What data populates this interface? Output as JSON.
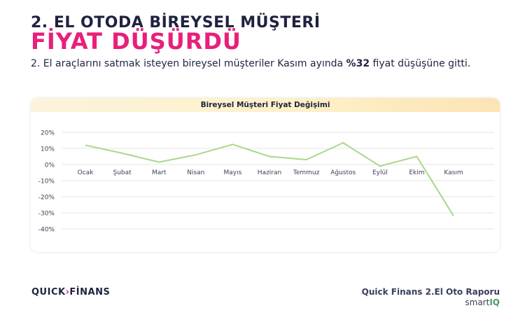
{
  "header": {
    "title_line1": "2. EL OTODA BİREYSEL MÜŞTERİ",
    "title_line2": "FİYAT DÜŞÜRDÜ",
    "subtitle_pre": "2. El araçlarını satmak isteyen bireysel müşteriler Kasım ayında ",
    "subtitle_bold": "%32",
    "subtitle_post": " fiyat düşüşüne gitti."
  },
  "colors": {
    "accent": "#e8207a",
    "title": "#1f2340",
    "line": "#a8d88a"
  },
  "chart_data": {
    "type": "line",
    "title": "Bireysel Müşteri Fiyat Değişimi",
    "categories": [
      "Ocak",
      "Şubat",
      "Mart",
      "Nisan",
      "Mayıs",
      "Haziran",
      "Temmuz",
      "Ağustos",
      "Eylül",
      "Ekim",
      "Kasım"
    ],
    "series": [
      {
        "values": [
          12,
          7,
          1.5,
          6,
          12.5,
          5,
          3,
          13.5,
          -1,
          5,
          -32
        ]
      }
    ],
    "yticks": [
      "20%",
      "10%",
      "0%",
      "-10%",
      "-20%",
      "-30%",
      "-40%"
    ],
    "ylim": [
      -40,
      20
    ],
    "grid": true,
    "xlabel": "",
    "ylabel": ""
  },
  "footer": {
    "logo_left": "QUICK",
    "logo_chevron": "›",
    "logo_right": "FİNANS",
    "report_title": "Quick Finans 2.El Oto Raporu",
    "brand_left": "smart",
    "brand_right": "IQ"
  }
}
